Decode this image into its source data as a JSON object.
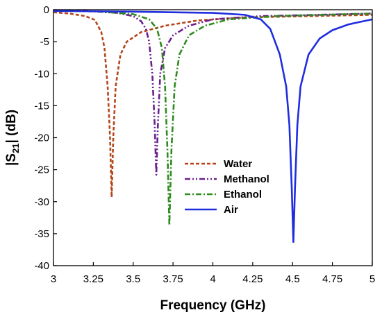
{
  "chart_data": {
    "type": "line",
    "title": "",
    "xlabel": "Frequency (GHz)",
    "ylabel_main": "|S",
    "ylabel_sub": "21",
    "ylabel_tail": "| (dB)",
    "xlim": [
      3,
      5
    ],
    "ylim": [
      -40,
      0
    ],
    "x_ticks": [
      3,
      3.25,
      3.5,
      3.75,
      4,
      4.25,
      4.5,
      4.75,
      5
    ],
    "x_tick_labels": [
      "3",
      "3.25",
      "3.5",
      "3.75",
      "4",
      "4.25",
      "4.5",
      "4.75",
      "5"
    ],
    "y_ticks": [
      0,
      -5,
      -10,
      -15,
      -20,
      -25,
      -30,
      -35,
      -40
    ],
    "y_tick_labels": [
      "0",
      "-5",
      "-10",
      "-15",
      "-20",
      "-25",
      "-30",
      "-35",
      "-40"
    ],
    "grid": false,
    "legend_position": "center-right",
    "series": [
      {
        "name": "Water",
        "color": "#b5451b",
        "dash": "dashed",
        "points": [
          [
            3.0,
            -0.4
          ],
          [
            3.1,
            -0.6
          ],
          [
            3.2,
            -1.0
          ],
          [
            3.26,
            -1.6
          ],
          [
            3.3,
            -3.5
          ],
          [
            3.32,
            -6.0
          ],
          [
            3.34,
            -12.0
          ],
          [
            3.355,
            -20.0
          ],
          [
            3.365,
            -29.3
          ],
          [
            3.375,
            -20.0
          ],
          [
            3.39,
            -12.0
          ],
          [
            3.42,
            -7.0
          ],
          [
            3.46,
            -5.0
          ],
          [
            3.55,
            -3.5
          ],
          [
            3.7,
            -2.5
          ],
          [
            3.9,
            -1.7
          ],
          [
            4.2,
            -1.2
          ],
          [
            4.6,
            -1.0
          ],
          [
            5.0,
            -0.8
          ]
        ]
      },
      {
        "name": "Methanol",
        "color": "#6a1f8e",
        "dash": "dashdotdot",
        "points": [
          [
            3.0,
            -0.1
          ],
          [
            3.2,
            -0.2
          ],
          [
            3.4,
            -0.5
          ],
          [
            3.5,
            -1.0
          ],
          [
            3.55,
            -1.8
          ],
          [
            3.58,
            -3.0
          ],
          [
            3.6,
            -5.0
          ],
          [
            3.62,
            -10.0
          ],
          [
            3.635,
            -18.0
          ],
          [
            3.645,
            -25.8
          ],
          [
            3.655,
            -18.0
          ],
          [
            3.67,
            -10.0
          ],
          [
            3.7,
            -6.0
          ],
          [
            3.75,
            -4.0
          ],
          [
            3.85,
            -2.5
          ],
          [
            4.0,
            -1.5
          ],
          [
            4.3,
            -1.0
          ],
          [
            5.0,
            -0.6
          ]
        ]
      },
      {
        "name": "Ethanol",
        "color": "#2e8b1e",
        "dash": "dashdot",
        "points": [
          [
            3.0,
            -0.1
          ],
          [
            3.3,
            -0.3
          ],
          [
            3.5,
            -0.7
          ],
          [
            3.6,
            -1.5
          ],
          [
            3.65,
            -3.0
          ],
          [
            3.68,
            -6.0
          ],
          [
            3.7,
            -12.0
          ],
          [
            3.715,
            -22.0
          ],
          [
            3.727,
            -33.7
          ],
          [
            3.74,
            -22.0
          ],
          [
            3.76,
            -12.0
          ],
          [
            3.79,
            -7.0
          ],
          [
            3.85,
            -4.0
          ],
          [
            3.95,
            -2.5
          ],
          [
            4.1,
            -1.5
          ],
          [
            4.4,
            -1.0
          ],
          [
            5.0,
            -0.6
          ]
        ]
      },
      {
        "name": "Air",
        "color": "#1f2de0",
        "dash": "solid",
        "points": [
          [
            3.0,
            -0.2
          ],
          [
            3.5,
            -0.3
          ],
          [
            4.0,
            -0.5
          ],
          [
            4.2,
            -0.8
          ],
          [
            4.3,
            -1.5
          ],
          [
            4.36,
            -3.0
          ],
          [
            4.42,
            -7.0
          ],
          [
            4.46,
            -12.0
          ],
          [
            4.48,
            -18.0
          ],
          [
            4.495,
            -28.0
          ],
          [
            4.505,
            -36.3
          ],
          [
            4.515,
            -28.0
          ],
          [
            4.53,
            -18.0
          ],
          [
            4.55,
            -12.0
          ],
          [
            4.6,
            -7.0
          ],
          [
            4.67,
            -4.5
          ],
          [
            4.75,
            -3.2
          ],
          [
            4.85,
            -2.3
          ],
          [
            5.0,
            -1.5
          ]
        ]
      }
    ]
  }
}
